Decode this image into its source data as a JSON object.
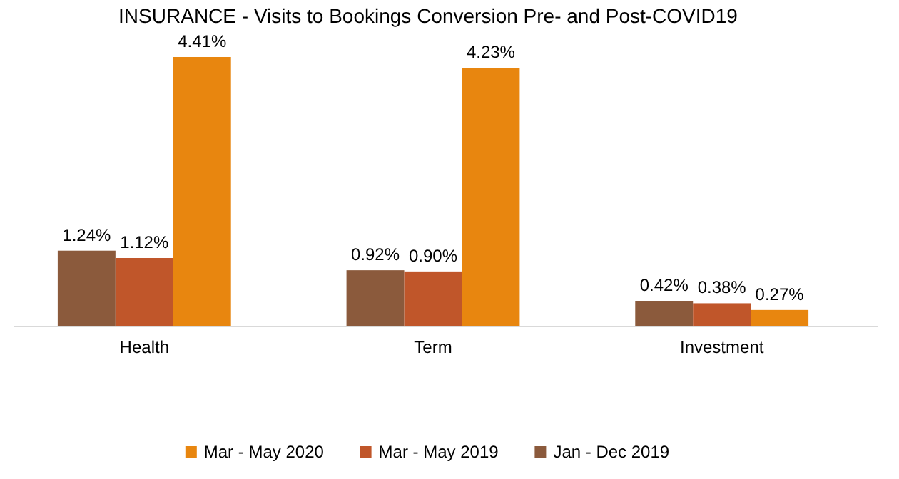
{
  "chart_data": {
    "type": "bar",
    "title": "INSURANCE - Visits to Bookings Conversion Pre- and Post-COVID19",
    "categories": [
      "Health",
      "Term",
      "Investment"
    ],
    "series": [
      {
        "name": "Jan - Dec 2019",
        "color": "#8b5a3c",
        "values": [
          1.24,
          0.92,
          0.42
        ],
        "value_labels": [
          "1.24%",
          "0.92%",
          "0.42%"
        ]
      },
      {
        "name": "Mar - May 2019",
        "color": "#c0562a",
        "values": [
          1.12,
          0.9,
          0.38
        ],
        "value_labels": [
          "1.12%",
          "0.90%",
          "0.38%"
        ]
      },
      {
        "name": "Mar - May 2020",
        "color": "#e8860f",
        "values": [
          4.41,
          4.23,
          0.27
        ],
        "value_labels": [
          "4.41%",
          "4.23%",
          "0.27%"
        ]
      }
    ],
    "legend": "bottom"
  }
}
